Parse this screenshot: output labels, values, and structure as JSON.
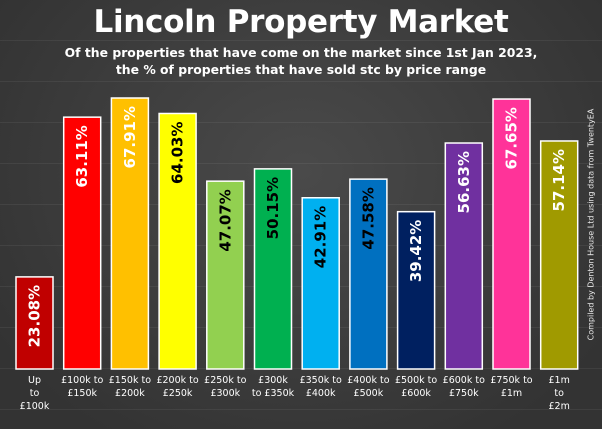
{
  "header": {
    "title": "Lincoln Property Market",
    "subtitle_line1": "Of the properties that have come on the market since 1st Jan 2023,",
    "subtitle_line2": "the % of properties that have sold stc by price range"
  },
  "credit": "Compiled by Denton House Ltd using data from TwentyEA",
  "chart_data": {
    "type": "bar",
    "title": "Lincoln Property Market",
    "subtitle": "Of the properties that have come on the market since 1st Jan 2023, the % of properties that have sold stc by price range",
    "ylim": [
      0,
      75
    ],
    "grid": true,
    "legend": "none",
    "categories": [
      [
        "Up",
        "to",
        "£100k"
      ],
      [
        "£100k to",
        "£150k"
      ],
      [
        "£150k to",
        "£200k"
      ],
      [
        "£200k to",
        "£250k"
      ],
      [
        "£250k to",
        "£300k"
      ],
      [
        "£300k",
        "to £350k"
      ],
      [
        "£350k to",
        "£400k"
      ],
      [
        "£400k to",
        "£500k"
      ],
      [
        "£500k to",
        "£600k"
      ],
      [
        "£600k to",
        "£750k"
      ],
      [
        "£750k to",
        "£1m"
      ],
      [
        "£1m",
        "to",
        "£2m"
      ]
    ],
    "values": [
      23.08,
      63.11,
      67.91,
      64.03,
      47.07,
      50.15,
      42.91,
      47.58,
      39.42,
      56.63,
      67.65,
      57.14
    ],
    "value_labels": [
      "23.08%",
      "63.11%",
      "67.91%",
      "64.03%",
      "47.07%",
      "50.15%",
      "42.91%",
      "47.58%",
      "39.42%",
      "56.63%",
      "67.65%",
      "57.14%"
    ],
    "colors": [
      "#c00000",
      "#ff0000",
      "#ffc000",
      "#ffff00",
      "#92d050",
      "#00b050",
      "#00b0f0",
      "#0070c0",
      "#002060",
      "#7030a0",
      "#ff3399",
      "#a09a00"
    ],
    "label_colors": [
      "#ffffff",
      "#ffffff",
      "#ffffff",
      "#000000",
      "#000000",
      "#000000",
      "#000000",
      "#000000",
      "#ffffff",
      "#ffffff",
      "#ffffff",
      "#ffffff"
    ]
  }
}
